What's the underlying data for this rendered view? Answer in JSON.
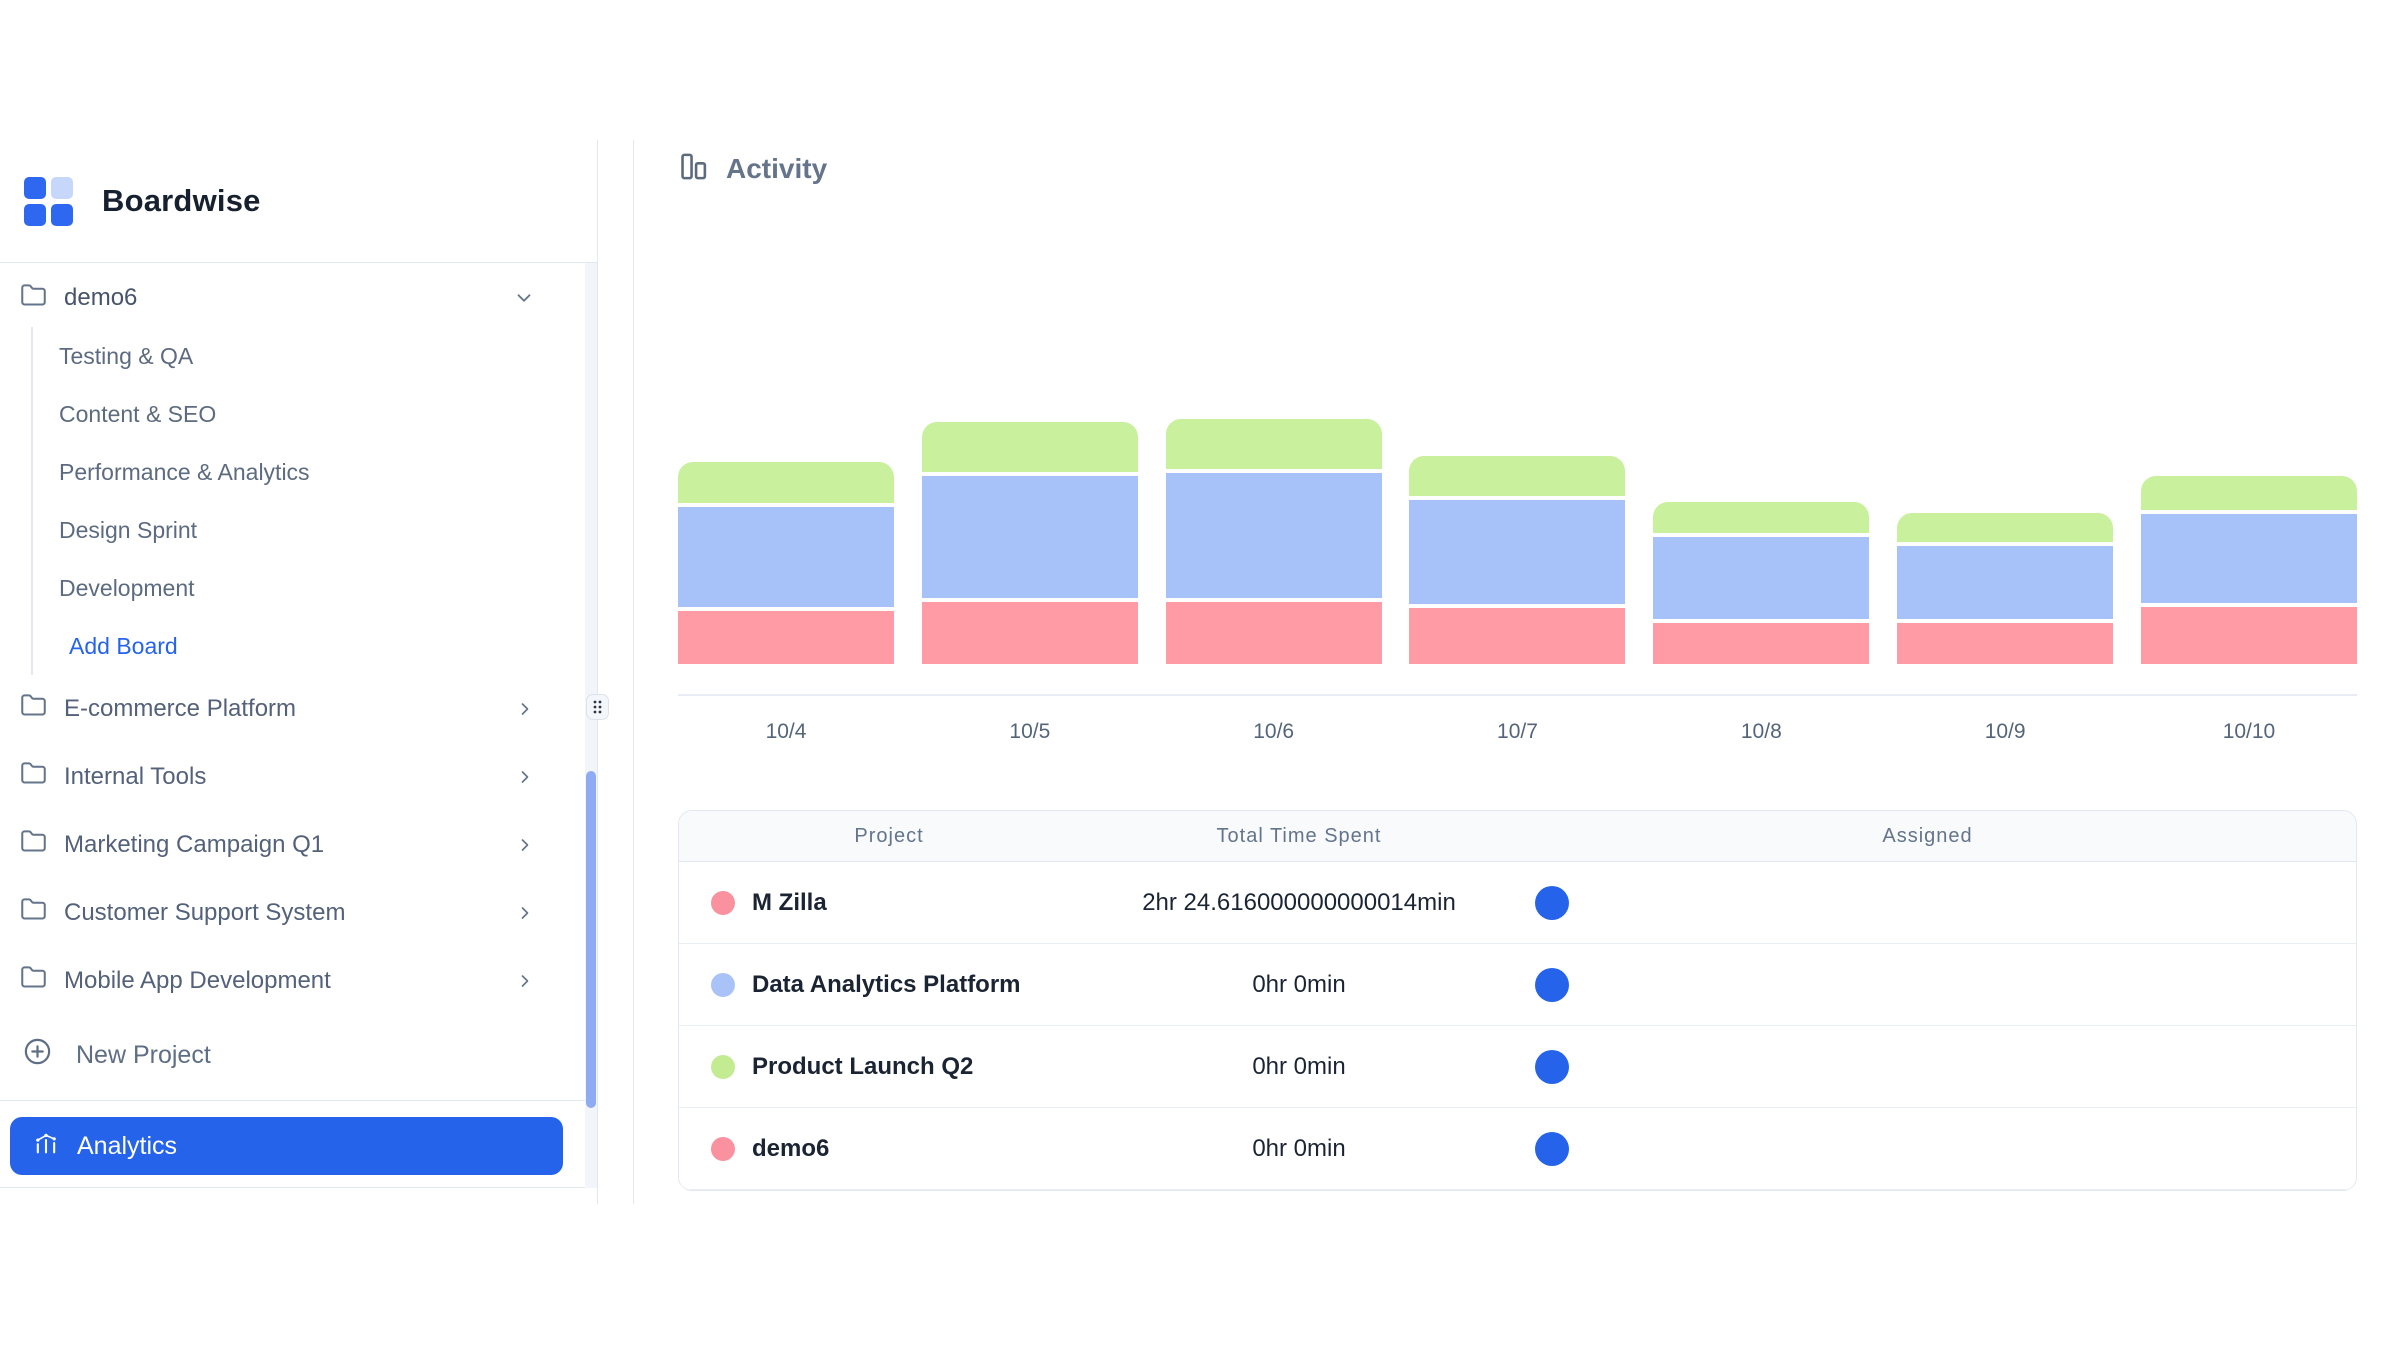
{
  "brand": {
    "name": "Boardwise"
  },
  "colors": {
    "accent": "#2563eb",
    "border": "#e2e8f0",
    "logo_blue": "#2f68f0",
    "logo_light": "#c7d6fb",
    "scroll_thumb": "#8fabf4",
    "bar_pink": "#ff9ba5",
    "bar_blue": "#a6c2f9",
    "bar_green": "#c9f09c"
  },
  "sidebar": {
    "active_project": {
      "label": "demo6"
    },
    "boards": [
      "Testing & QA",
      "Content & SEO",
      "Performance & Analytics",
      "Design Sprint",
      "Development"
    ],
    "add_board_label": "Add Board",
    "projects": [
      "E-commerce Platform",
      "Internal Tools",
      "Marketing Campaign Q1",
      "Customer Support System",
      "Mobile App Development"
    ],
    "new_project_label": "New Project",
    "analytics_label": "Analytics"
  },
  "main": {
    "title": "Activity"
  },
  "chart_data": {
    "type": "bar",
    "stacked": true,
    "title": "Activity",
    "categories": [
      "10/4",
      "10/5",
      "10/6",
      "10/7",
      "10/8",
      "10/9",
      "10/10"
    ],
    "series": [
      {
        "name": "M Zilla",
        "color": "#ff9ba5",
        "values": [
          53,
          62,
          62,
          56,
          41,
          41,
          57
        ]
      },
      {
        "name": "Data Analytics Platform",
        "color": "#a6c2f9",
        "values": [
          100,
          122,
          125,
          104,
          82,
          73,
          89
        ]
      },
      {
        "name": "Product Launch Q2",
        "color": "#c9f09c",
        "values": [
          41,
          50,
          50,
          40,
          31,
          29,
          34
        ]
      }
    ],
    "stack_order": "bottom-to-top",
    "units": "relative height (px), no numeric axis shown",
    "xlabel": "",
    "ylabel": "",
    "grid": false,
    "legend_position": "none",
    "baseline_color": "#e8edf3"
  },
  "table": {
    "columns": [
      "Project",
      "Total Time Spent",
      "Assigned"
    ],
    "assigned_color": "#2563eb",
    "rows": [
      {
        "project": "M Zilla",
        "dot_color": "#f9919e",
        "time": "2hr 24.616000000000014min"
      },
      {
        "project": "Data Analytics Platform",
        "dot_color": "#a9c3f8",
        "time": "0hr 0min"
      },
      {
        "project": "Product Launch Q2",
        "dot_color": "#c3ec92",
        "time": "0hr 0min"
      },
      {
        "project": "demo6",
        "dot_color": "#f9919e",
        "time": "0hr 0min"
      }
    ]
  }
}
